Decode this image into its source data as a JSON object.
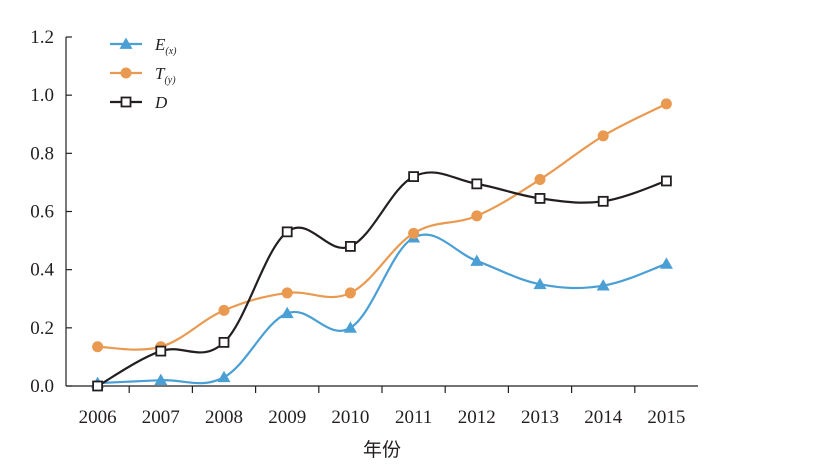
{
  "chart_data": {
    "type": "line",
    "title": "",
    "xlabel": "年份",
    "ylabel": "",
    "ylim": [
      0,
      1.2
    ],
    "yticks": [
      0.0,
      0.2,
      0.4,
      0.6,
      0.8,
      1.0,
      1.2
    ],
    "ytick_labels": [
      "0.0",
      "0.2",
      "0.4",
      "0.6",
      "0.8",
      "1.0",
      "1.2"
    ],
    "categories": [
      "2006",
      "2007",
      "2008",
      "2009",
      "2010",
      "2011",
      "2012",
      "2013",
      "2014",
      "2015"
    ],
    "grid": false,
    "legend_position": "top-left",
    "series": [
      {
        "name": "E",
        "name_sub": "(x)",
        "color": "#4a9fd5",
        "marker": "triangle",
        "values": [
          0.01,
          0.02,
          0.03,
          0.25,
          0.2,
          0.51,
          0.43,
          0.35,
          0.345,
          0.42
        ]
      },
      {
        "name": "T",
        "name_sub": "(y)",
        "color": "#e99a50",
        "marker": "circle",
        "values": [
          0.135,
          0.135,
          0.26,
          0.32,
          0.32,
          0.525,
          0.585,
          0.71,
          0.86,
          0.97
        ]
      },
      {
        "name": "D",
        "name_sub": "",
        "color": "#231f20",
        "marker": "square-open",
        "values": [
          0.0,
          0.12,
          0.15,
          0.53,
          0.48,
          0.72,
          0.695,
          0.645,
          0.635,
          0.705
        ]
      }
    ]
  }
}
